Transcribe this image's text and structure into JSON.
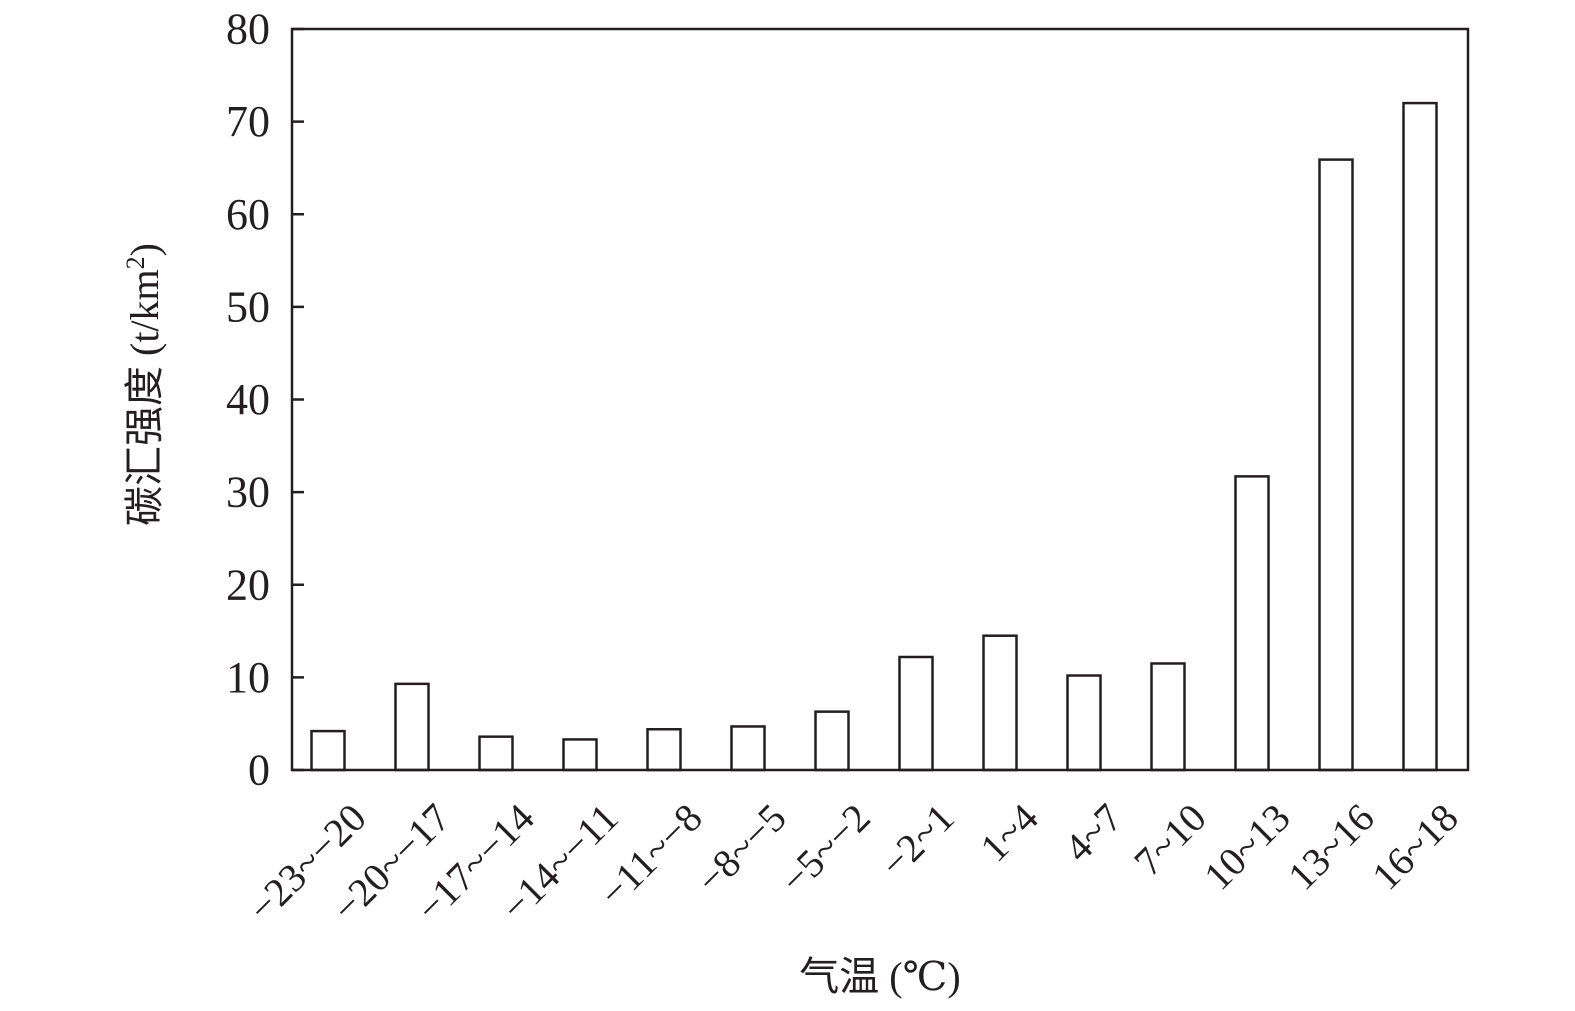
{
  "chart_data": {
    "type": "bar",
    "title": "",
    "xlabel": "气温 (℃)",
    "ylabel": "碳汇强度 (t/km²)",
    "ylabel_parts": {
      "main": "碳汇强度 (t/km",
      "sup": "2",
      "close": ")"
    },
    "categories": [
      "−23~−20",
      "−20~−17",
      "−17~−14",
      "−14~−11",
      "−11~−8",
      "−8~−5",
      "−5~−2",
      "−2~1",
      "1~4",
      "4~7",
      "7~10",
      "10~13",
      "13~16",
      "16~18"
    ],
    "values": [
      4.2,
      9.3,
      3.6,
      3.3,
      4.4,
      4.7,
      6.3,
      12.2,
      14.5,
      10.2,
      11.5,
      31.7,
      65.9,
      72.0
    ],
    "ylim": [
      0,
      80
    ],
    "yticks": [
      0,
      10,
      20,
      30,
      40,
      50,
      60,
      70,
      80
    ],
    "grid": false,
    "legend": "none",
    "colors": {
      "bar_fill": "#ffffff",
      "bar_stroke": "#231f20",
      "text": "#231f20"
    }
  }
}
